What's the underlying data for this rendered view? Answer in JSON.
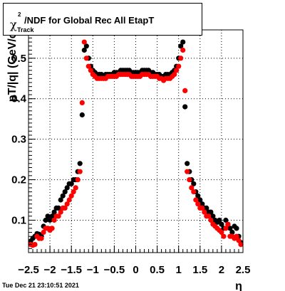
{
  "title": {
    "symbol": "χ",
    "superscript": "2",
    "subscript": "Track",
    "text": "/NDF for Global Rec All EtapT"
  },
  "timestamp": "Tue Dec 21 23:10:51 2021",
  "chart_data": {
    "type": "scatter",
    "xlabel": "η",
    "ylabel": "pT/|q| (GeV/c)",
    "xlim": [
      -2.5,
      2.5
    ],
    "ylim": [
      0.02,
      0.57
    ],
    "x_ticks": [
      -2.5,
      -2,
      -1.5,
      -1,
      -0.5,
      0,
      0.5,
      1,
      1.5,
      2,
      2.5
    ],
    "x_tick_labels": [
      "−2.5",
      "−2",
      "−1.5",
      "−1",
      "−0.5",
      "0",
      "0.5",
      "1",
      "1.5",
      "2",
      "2.5"
    ],
    "y_ticks": [
      0.1,
      0.2,
      0.3,
      0.4,
      0.5
    ],
    "y_tick_labels": [
      "0.1",
      "0.2",
      "0.3",
      "0.4",
      "0.5"
    ],
    "grid": true,
    "series": [
      {
        "color": "#000000",
        "x": [
          -2.45,
          -2.4,
          -2.35,
          -2.3,
          -2.25,
          -2.2,
          -2.15,
          -2.1,
          -2.05,
          -2.0,
          -1.95,
          -1.9,
          -1.85,
          -1.8,
          -1.75,
          -1.7,
          -1.65,
          -1.6,
          -1.55,
          -1.5,
          -1.45,
          -1.4,
          -1.35,
          -1.3,
          -1.25,
          -1.2,
          -1.15,
          -1.1,
          -1.05,
          -1.0,
          -0.95,
          -0.9,
          -0.85,
          -0.8,
          -0.75,
          -0.7,
          -0.65,
          -0.6,
          -0.55,
          -0.5,
          -0.45,
          -0.4,
          -0.35,
          -0.3,
          -0.25,
          -0.2,
          -0.15,
          -0.1,
          -0.05,
          0.0,
          0.05,
          0.1,
          0.15,
          0.2,
          0.25,
          0.3,
          0.35,
          0.4,
          0.45,
          0.5,
          0.55,
          0.6,
          0.65,
          0.7,
          0.75,
          0.8,
          0.85,
          0.9,
          0.95,
          1.0,
          1.05,
          1.1,
          1.15,
          1.2,
          1.25,
          1.3,
          1.35,
          1.4,
          1.45,
          1.5,
          1.55,
          1.6,
          1.65,
          1.7,
          1.75,
          1.8,
          1.85,
          1.9,
          1.95,
          2.0,
          2.05,
          2.1,
          2.15,
          2.2,
          2.25,
          2.3,
          2.35,
          2.4,
          2.45
        ],
        "y": [
          0.048,
          0.055,
          0.06,
          0.067,
          0.065,
          0.06,
          0.085,
          0.1,
          0.11,
          0.1,
          0.11,
          0.12,
          0.13,
          0.13,
          0.15,
          0.16,
          0.17,
          0.18,
          0.19,
          0.19,
          0.2,
          0.2,
          0.22,
          0.24,
          0.36,
          0.52,
          0.53,
          0.5,
          0.48,
          0.47,
          0.465,
          0.46,
          0.46,
          0.46,
          0.455,
          0.46,
          0.46,
          0.46,
          0.46,
          0.465,
          0.465,
          0.465,
          0.47,
          0.47,
          0.47,
          0.47,
          0.47,
          0.465,
          0.465,
          0.465,
          0.465,
          0.465,
          0.47,
          0.47,
          0.47,
          0.47,
          0.465,
          0.465,
          0.46,
          0.46,
          0.46,
          0.455,
          0.455,
          0.46,
          0.46,
          0.46,
          0.465,
          0.47,
          0.48,
          0.5,
          0.53,
          0.54,
          0.38,
          0.24,
          0.22,
          0.2,
          0.19,
          0.17,
          0.16,
          0.15,
          0.14,
          0.13,
          0.13,
          0.12,
          0.12,
          0.11,
          0.1,
          0.095,
          0.1,
          0.09,
          0.08,
          0.1,
          0.09,
          0.08,
          0.07,
          0.085,
          0.08,
          0.06,
          0.045
        ]
      },
      {
        "color": "#ff0000",
        "x": [
          -2.45,
          -2.4,
          -2.35,
          -2.3,
          -2.25,
          -2.2,
          -2.15,
          -2.1,
          -2.05,
          -2.0,
          -1.95,
          -1.9,
          -1.85,
          -1.8,
          -1.75,
          -1.7,
          -1.65,
          -1.6,
          -1.55,
          -1.5,
          -1.45,
          -1.4,
          -1.35,
          -1.3,
          -1.25,
          -1.2,
          -1.15,
          -1.1,
          -1.05,
          -1.0,
          -0.95,
          -0.9,
          -0.85,
          -0.8,
          -0.75,
          -0.7,
          -0.65,
          -0.6,
          -0.55,
          -0.5,
          -0.45,
          -0.4,
          -0.35,
          -0.3,
          -0.25,
          -0.2,
          -0.15,
          -0.1,
          -0.05,
          0.0,
          0.05,
          0.1,
          0.15,
          0.2,
          0.25,
          0.3,
          0.35,
          0.4,
          0.45,
          0.5,
          0.55,
          0.6,
          0.65,
          0.7,
          0.75,
          0.8,
          0.85,
          0.9,
          0.95,
          1.0,
          1.05,
          1.1,
          1.15,
          1.2,
          1.25,
          1.3,
          1.35,
          1.4,
          1.45,
          1.5,
          1.55,
          1.6,
          1.65,
          1.7,
          1.75,
          1.8,
          1.85,
          1.9,
          1.95,
          2.0,
          2.05,
          2.1,
          2.15,
          2.2,
          2.25,
          2.3,
          2.35,
          2.4,
          2.45
        ],
        "y": [
          0.04,
          0.038,
          0.04,
          0.06,
          0.055,
          0.055,
          0.07,
          0.08,
          0.08,
          0.075,
          0.08,
          0.1,
          0.11,
          0.11,
          0.12,
          0.13,
          0.13,
          0.14,
          0.15,
          0.16,
          0.17,
          0.18,
          0.2,
          0.22,
          0.39,
          0.54,
          0.5,
          0.48,
          0.47,
          0.46,
          0.455,
          0.45,
          0.45,
          0.45,
          0.45,
          0.45,
          0.455,
          0.455,
          0.455,
          0.455,
          0.455,
          0.46,
          0.46,
          0.46,
          0.46,
          0.46,
          0.46,
          0.455,
          0.455,
          0.455,
          0.455,
          0.455,
          0.46,
          0.46,
          0.46,
          0.46,
          0.455,
          0.455,
          0.455,
          0.455,
          0.45,
          0.45,
          0.445,
          0.45,
          0.45,
          0.45,
          0.455,
          0.46,
          0.47,
          0.48,
          0.5,
          0.52,
          0.42,
          0.22,
          0.2,
          0.18,
          0.17,
          0.15,
          0.14,
          0.13,
          0.13,
          0.12,
          0.11,
          0.11,
          0.1,
          0.09,
          0.085,
          0.08,
          0.075,
          0.07,
          0.06,
          0.08,
          0.09,
          0.06,
          0.06,
          0.055,
          0.06,
          0.05,
          0.04
        ]
      }
    ]
  }
}
